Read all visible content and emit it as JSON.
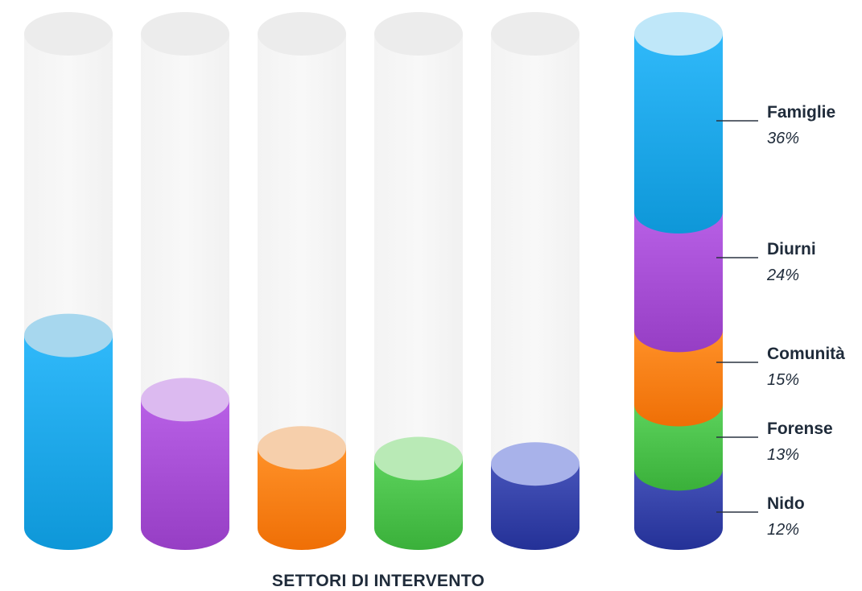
{
  "chart_data": {
    "type": "bar",
    "style": "3d-cylinder",
    "title": "SETTORI DI INTERVENTO",
    "categories": [
      "Famiglie",
      "Diurni",
      "Comunità",
      "Forense",
      "Nido"
    ],
    "values": [
      36,
      24,
      15,
      13,
      12
    ],
    "value_labels": [
      "36%",
      "24%",
      "15%",
      "13%",
      "12%"
    ],
    "unit": "%",
    "ylim": [
      0,
      100
    ],
    "grid": false,
    "stacked_total": {
      "type": "stacked-bar",
      "order_top_to_bottom": [
        "Famiglie",
        "Diurni",
        "Comunità",
        "Forense",
        "Nido"
      ],
      "values_top_to_bottom": [
        36,
        24,
        15,
        13,
        12
      ]
    },
    "colors": [
      "#1aa3e4",
      "#a24ad0",
      "#fb7b12",
      "#46bc46",
      "#303da3"
    ],
    "cap_colors": [
      "#a7d7ee",
      "#dcbaf0",
      "#f6cfab",
      "#b9eab6",
      "#a8b2ea"
    ],
    "legend": "right"
  }
}
